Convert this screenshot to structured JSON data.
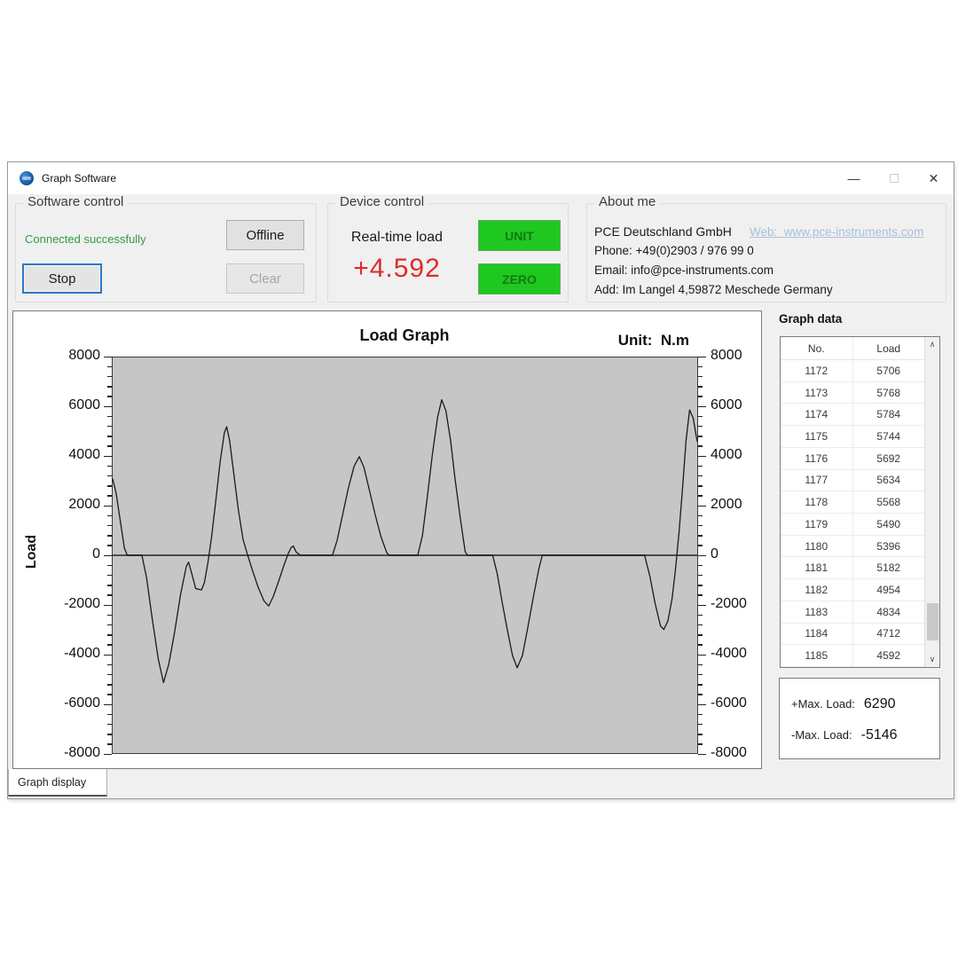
{
  "window": {
    "title": "Graph Software",
    "minimize_glyph": "—",
    "close_glyph": "✕"
  },
  "software_control": {
    "title": "Software control",
    "status": "Connected successfully",
    "offline_label": "Offline",
    "stop_label": "Stop",
    "clear_label": "Clear"
  },
  "device_control": {
    "title": "Device control",
    "realtime_label": "Real-time load",
    "realtime_value": "+4.592",
    "unit_label": "UNIT",
    "zero_label": "ZERO"
  },
  "about": {
    "title": "About me",
    "company": "PCE Deutschland GmbH",
    "web_link": "Web:  www.pce-instruments.com",
    "phone": "Phone: +49(0)2903 / 976 99 0",
    "email": "Email: info@pce-instruments.com",
    "address": "Add: Im Langel 4,59872 Meschede Germany"
  },
  "graph_data": {
    "title": "Graph data",
    "columns": [
      "No.",
      "Load"
    ],
    "rows": [
      [
        1172,
        5706
      ],
      [
        1173,
        5768
      ],
      [
        1174,
        5784
      ],
      [
        1175,
        5744
      ],
      [
        1176,
        5692
      ],
      [
        1177,
        5634
      ],
      [
        1178,
        5568
      ],
      [
        1179,
        5490
      ],
      [
        1180,
        5396
      ],
      [
        1181,
        5182
      ],
      [
        1182,
        4954
      ],
      [
        1183,
        4834
      ],
      [
        1184,
        4712
      ],
      [
        1185,
        4592
      ]
    ],
    "scroll_up_glyph": "∧",
    "scroll_down_glyph": "∨"
  },
  "max_panel": {
    "pos_label": "+Max. Load:",
    "pos_value": "6290",
    "neg_label": "-Max. Load:",
    "neg_value": "-5146"
  },
  "tab": {
    "label": "Graph display"
  },
  "chart_data": {
    "type": "line",
    "title": "Load Graph",
    "unit_label": "Unit:  N.m",
    "ylabel": "Load",
    "xlabel": "",
    "ylim": [
      -8000,
      8000
    ],
    "ytick_interval": 2000,
    "minor_tick_interval": 400,
    "yticks": [
      8000,
      6000,
      4000,
      2000,
      0,
      -2000,
      -4000,
      -6000,
      -8000
    ],
    "grid": false,
    "legend": "none",
    "plot_bg": "#c6c6c6",
    "line_color": "#1a1a1a",
    "zero_line_color": "#4a4a4a",
    "points": [
      [
        0,
        3100
      ],
      [
        0.006,
        2500
      ],
      [
        0.013,
        1400
      ],
      [
        0.02,
        300
      ],
      [
        0.025,
        0
      ],
      [
        0.05,
        0
      ],
      [
        0.058,
        -900
      ],
      [
        0.068,
        -2600
      ],
      [
        0.078,
        -4200
      ],
      [
        0.087,
        -5146
      ],
      [
        0.096,
        -4400
      ],
      [
        0.106,
        -3100
      ],
      [
        0.116,
        -1600
      ],
      [
        0.126,
        -450
      ],
      [
        0.13,
        -280
      ],
      [
        0.136,
        -800
      ],
      [
        0.142,
        -1350
      ],
      [
        0.152,
        -1400
      ],
      [
        0.157,
        -1100
      ],
      [
        0.163,
        -300
      ],
      [
        0.169,
        700
      ],
      [
        0.176,
        2100
      ],
      [
        0.184,
        3800
      ],
      [
        0.191,
        4950
      ],
      [
        0.195,
        5200
      ],
      [
        0.2,
        4650
      ],
      [
        0.207,
        3350
      ],
      [
        0.215,
        1850
      ],
      [
        0.223,
        650
      ],
      [
        0.231,
        0
      ],
      [
        0.239,
        -600
      ],
      [
        0.249,
        -1300
      ],
      [
        0.259,
        -1850
      ],
      [
        0.267,
        -2050
      ],
      [
        0.275,
        -1650
      ],
      [
        0.284,
        -1050
      ],
      [
        0.293,
        -400
      ],
      [
        0.3,
        50
      ],
      [
        0.305,
        300
      ],
      [
        0.309,
        380
      ],
      [
        0.314,
        130
      ],
      [
        0.321,
        0
      ],
      [
        0.376,
        0
      ],
      [
        0.384,
        600
      ],
      [
        0.393,
        1600
      ],
      [
        0.403,
        2700
      ],
      [
        0.413,
        3600
      ],
      [
        0.422,
        3990
      ],
      [
        0.43,
        3550
      ],
      [
        0.439,
        2650
      ],
      [
        0.449,
        1650
      ],
      [
        0.459,
        750
      ],
      [
        0.469,
        100
      ],
      [
        0.473,
        0
      ],
      [
        0.522,
        0
      ],
      [
        0.53,
        800
      ],
      [
        0.538,
        2300
      ],
      [
        0.547,
        4100
      ],
      [
        0.556,
        5600
      ],
      [
        0.563,
        6290
      ],
      [
        0.57,
        5850
      ],
      [
        0.578,
        4650
      ],
      [
        0.586,
        3050
      ],
      [
        0.595,
        1450
      ],
      [
        0.603,
        150
      ],
      [
        0.607,
        0
      ],
      [
        0.65,
        0
      ],
      [
        0.658,
        -750
      ],
      [
        0.666,
        -1850
      ],
      [
        0.675,
        -3000
      ],
      [
        0.684,
        -4050
      ],
      [
        0.692,
        -4550
      ],
      [
        0.701,
        -4050
      ],
      [
        0.71,
        -2950
      ],
      [
        0.72,
        -1650
      ],
      [
        0.729,
        -550
      ],
      [
        0.735,
        0
      ],
      [
        0.91,
        0
      ],
      [
        0.919,
        -850
      ],
      [
        0.928,
        -1950
      ],
      [
        0.937,
        -2850
      ],
      [
        0.943,
        -3000
      ],
      [
        0.95,
        -2650
      ],
      [
        0.957,
        -1750
      ],
      [
        0.963,
        -550
      ],
      [
        0.969,
        950
      ],
      [
        0.975,
        2750
      ],
      [
        0.981,
        4650
      ],
      [
        0.987,
        5880
      ],
      [
        0.993,
        5550
      ],
      [
        1,
        4592
      ]
    ]
  },
  "colors": {
    "status_green": "#2f9e44",
    "value_red": "#e02b2b",
    "link_blue": "#a9c0d9",
    "button_green": "#1fc81f",
    "focus_blue": "#2e78c7"
  }
}
